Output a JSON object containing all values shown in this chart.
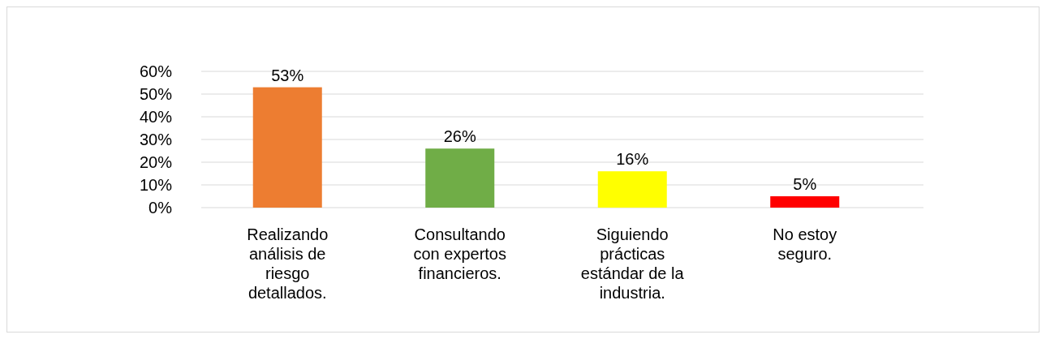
{
  "chart_data": {
    "type": "bar",
    "categories": [
      "Realizando análisis de riesgo detallados.",
      "Consultando con expertos financieros.",
      "Siguiendo prácticas estándar de la industria.",
      "No estoy seguro."
    ],
    "values": [
      53,
      26,
      16,
      5
    ],
    "colors": [
      "#ed7d31",
      "#70ad47",
      "#ffff00",
      "#ff0000"
    ],
    "value_labels": [
      "53%",
      "26%",
      "16%",
      "5%"
    ],
    "ylim": [
      0,
      60
    ],
    "yticks": [
      {
        "value": 0,
        "label": "0%"
      },
      {
        "value": 10,
        "label": "10%"
      },
      {
        "value": 20,
        "label": "20%"
      },
      {
        "value": 30,
        "label": "30%"
      },
      {
        "value": 40,
        "label": "40%"
      },
      {
        "value": 50,
        "label": "50%"
      },
      {
        "value": 60,
        "label": "60%"
      }
    ],
    "grid": "y"
  }
}
